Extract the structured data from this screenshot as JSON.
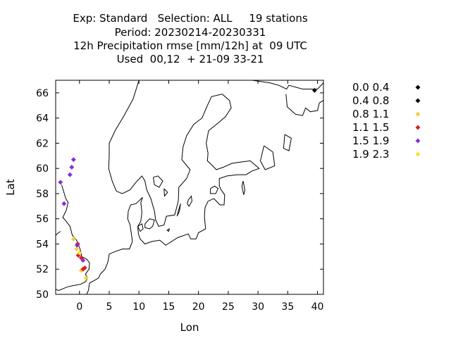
{
  "title_lines": [
    "Exp: Standard   Selection: ALL     19 stations",
    "Period: 20230214-20230331",
    "12h Precipitation rmse [mm/12h] at  09 UTC",
    "Used  00,12  + 21-09 33-21"
  ],
  "chart_data": {
    "type": "scatter",
    "title": "Exp: Standard   Selection: ALL     19 stations",
    "xlabel": "Lon",
    "ylabel": "Lat",
    "xlim": [
      -4,
      41
    ],
    "ylim": [
      50,
      67
    ],
    "xticks": [
      0,
      5,
      10,
      15,
      20,
      25,
      30,
      35,
      40
    ],
    "yticks": [
      50,
      52,
      54,
      56,
      58,
      60,
      62,
      64,
      66
    ],
    "grid": false,
    "legend_position": "right",
    "background_map": "coastlines",
    "series": [
      {
        "name": "0.0 0.4",
        "color": "#000000",
        "points": [
          [
            39.5,
            66.2
          ]
        ]
      },
      {
        "name": "0.4 0.8",
        "color": "#000000",
        "points": []
      },
      {
        "name": "0.8 1.1",
        "color": "#f4d03f",
        "points": [
          [
            -1.0,
            54.4
          ],
          [
            -0.5,
            53.6
          ],
          [
            0.3,
            51.9
          ],
          [
            1.1,
            51.3
          ]
        ]
      },
      {
        "name": "1.1 1.5",
        "color": "#d62222",
        "points": [
          [
            -0.3,
            54.0
          ],
          [
            -0.2,
            53.1
          ],
          [
            0.3,
            52.9
          ],
          [
            0.6,
            52.0
          ],
          [
            0.9,
            52.1
          ]
        ]
      },
      {
        "name": "1.5 1.9",
        "color": "#8a2be2",
        "points": [
          [
            -3.2,
            58.9
          ],
          [
            -2.6,
            57.2
          ],
          [
            -1.6,
            59.5
          ],
          [
            -1.3,
            60.1
          ],
          [
            -1.0,
            60.7
          ],
          [
            -0.4,
            53.9
          ],
          [
            0.6,
            52.7
          ]
        ]
      },
      {
        "name": "1.9 2.3",
        "color": "#f5e52a",
        "points": [
          [
            0.0,
            53.3
          ]
        ]
      }
    ]
  }
}
